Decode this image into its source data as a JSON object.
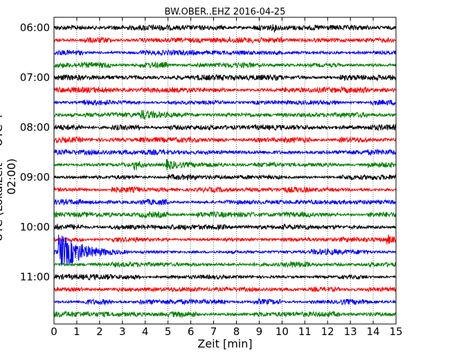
{
  "chart_data": {
    "type": "line",
    "title": "BW.OBER..EHZ 2016-04-25",
    "xlabel": "Zeit  [min]",
    "ylabel": "UTC (Lokalzeit = UTC + 02:00)",
    "xlim": [
      0,
      15
    ],
    "x_ticks": [
      "0",
      "1",
      "2",
      "3",
      "4",
      "5",
      "6",
      "7",
      "8",
      "9",
      "10",
      "11",
      "12",
      "13",
      "14",
      "15"
    ],
    "y_tick_labels": [
      "06:00",
      "07:00",
      "08:00",
      "09:00",
      "10:00",
      "11:00"
    ],
    "grid": "vertical dotted",
    "colors": [
      "#000000",
      "#ff0000",
      "#0000ff",
      "#008000"
    ],
    "trace_start_utc": [
      "06:00",
      "06:15",
      "06:30",
      "06:45",
      "07:00",
      "07:15",
      "07:30",
      "07:45",
      "08:00",
      "08:15",
      "08:30",
      "08:45",
      "09:00",
      "09:15",
      "09:30",
      "09:45",
      "10:00",
      "10:15",
      "10:30",
      "10:45",
      "11:00",
      "11:15",
      "11:30",
      "11:45"
    ],
    "events": [
      {
        "trace": 0,
        "minute": 9.3,
        "amplitude": 1.2,
        "duration": 0.1
      },
      {
        "trace": 0,
        "minute": 9.65,
        "amplitude": 1.5,
        "duration": 0.1
      },
      {
        "trace": 7,
        "minute": 3.85,
        "amplitude": 2.2,
        "duration": 2.2
      },
      {
        "trace": 11,
        "minute": 3.55,
        "amplitude": 3.5,
        "duration": 0.6
      },
      {
        "trace": 11,
        "minute": 4.95,
        "amplitude": 2.5,
        "duration": 0.8
      },
      {
        "trace": 11,
        "minute": 3.0,
        "amplitude": 0.7,
        "duration": 0.8
      },
      {
        "trace": 18,
        "minute": 0.25,
        "amplitude": 10.0,
        "duration": 3.0
      },
      {
        "trace": 17,
        "minute": 14.65,
        "amplitude": 2.2,
        "duration": 0.4
      },
      {
        "trace": 19,
        "minute": 10.4,
        "amplitude": 0.6,
        "duration": 1.3
      },
      {
        "trace": 22,
        "minute": 2.8,
        "amplitude": 0.5,
        "duration": 0.8
      }
    ]
  }
}
